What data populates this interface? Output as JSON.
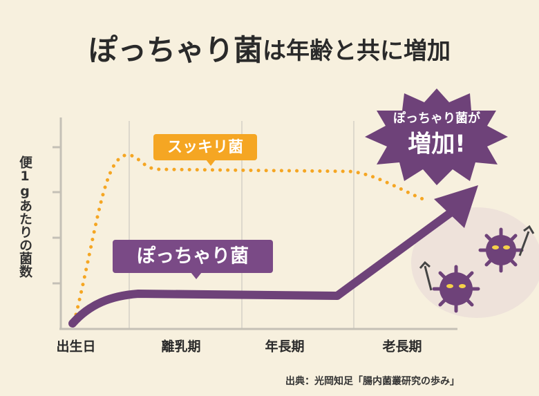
{
  "title": {
    "main": "ぽっちゃり菌",
    "rest": "は年齢と共に増加"
  },
  "y_axis_label": "便1gあたりの菌数",
  "x_labels": [
    "出生日",
    "離乳期",
    "年長期",
    "老長期"
  ],
  "labels": {
    "good": "スッキリ菌",
    "bad": "ぽっちゃり菌"
  },
  "burst": {
    "line1": "ぽっちゃり菌が",
    "line2": "増加!"
  },
  "source": "出典：光岡知足「腸内菌叢研究の歩み」"
}
